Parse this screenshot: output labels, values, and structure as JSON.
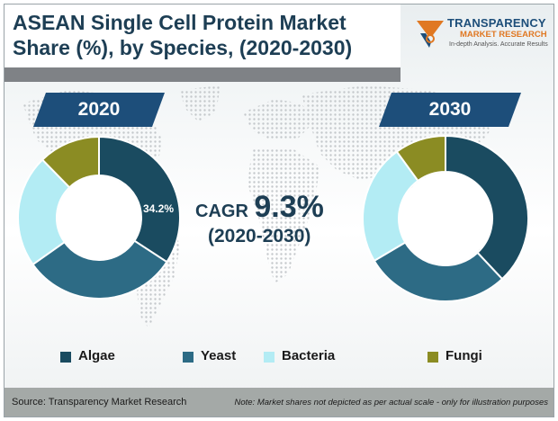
{
  "header": {
    "title_bold": "ASEAN Single Cell Protein Market",
    "title_bold_2": "Share (%),",
    "title_rest": " by Species, (2020-2030)"
  },
  "logo": {
    "name": "TRANSPARENCY",
    "sub": "MARKET RESEARCH",
    "tagline": "In-depth Analysis. Accurate Results"
  },
  "cagr": {
    "label": "CAGR",
    "value": "9.3%",
    "period": "(2020-2030)"
  },
  "footer": {
    "source": "Source: Transparency Market Research",
    "note": "Note: Market shares not depicted as per actual scale - only for illustration purposes"
  },
  "colors": {
    "Algae": "#1a4b60",
    "Yeast": "#2d6b85",
    "Bacteria": "#b3ecf4",
    "Fungi": "#8b8c23",
    "tab": "#1d4e7a",
    "title": "#1d3e54"
  },
  "chart_data": [
    {
      "type": "pie",
      "title": "2020",
      "categories": [
        "Algae",
        "Yeast",
        "Bacteria",
        "Fungi"
      ],
      "values": [
        34.2,
        31.0,
        22.5,
        12.3
      ],
      "data_labels": [
        "34.2%",
        "",
        "",
        ""
      ],
      "legend_position": "bottom"
    },
    {
      "type": "pie",
      "title": "2030",
      "categories": [
        "Algae",
        "Yeast",
        "Bacteria",
        "Fungi"
      ],
      "values": [
        38.0,
        28.5,
        23.5,
        10.0
      ],
      "data_labels": [
        "",
        "",
        "",
        ""
      ],
      "legend_position": "bottom"
    }
  ]
}
